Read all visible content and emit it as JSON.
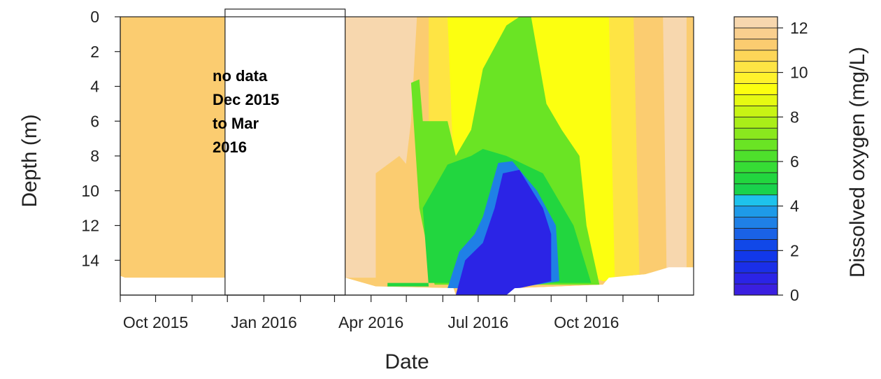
{
  "chart_data": {
    "type": "heatmap",
    "xlabel": "Date",
    "ylabel": "Depth (m)",
    "x_ticks": [
      "Oct 2015",
      "Jan 2016",
      "Apr 2016",
      "Jul 2016",
      "Oct 2016"
    ],
    "x_range": [
      "2015-09-01",
      "2016-12-31"
    ],
    "y_ticks": [
      0,
      2,
      4,
      6,
      8,
      10,
      12,
      14
    ],
    "ylim": [
      16,
      0
    ],
    "y_reversed": true,
    "colorbar": {
      "label": "Dissolved oxygen (mg/L)",
      "ticks": [
        0,
        2,
        4,
        6,
        8,
        10,
        12
      ],
      "range": [
        0,
        12.5
      ],
      "levels": [
        {
          "from": 0.0,
          "to": 0.5,
          "color": "#3a1fe0"
        },
        {
          "from": 0.5,
          "to": 1.0,
          "color": "#2b24e6"
        },
        {
          "from": 1.0,
          "to": 1.5,
          "color": "#1a2fe8"
        },
        {
          "from": 1.5,
          "to": 2.0,
          "color": "#1238ea"
        },
        {
          "from": 2.0,
          "to": 2.5,
          "color": "#1148e8"
        },
        {
          "from": 2.5,
          "to": 3.0,
          "color": "#1a62e6"
        },
        {
          "from": 3.0,
          "to": 3.5,
          "color": "#1f80e6"
        },
        {
          "from": 3.5,
          "to": 4.0,
          "color": "#1e9ae8"
        },
        {
          "from": 4.0,
          "to": 4.5,
          "color": "#1ec2ec"
        },
        {
          "from": 4.5,
          "to": 5.0,
          "color": "#19d24c"
        },
        {
          "from": 5.0,
          "to": 5.5,
          "color": "#22d63f"
        },
        {
          "from": 5.5,
          "to": 6.0,
          "color": "#36dc35"
        },
        {
          "from": 6.0,
          "to": 6.5,
          "color": "#4ee02c"
        },
        {
          "from": 6.5,
          "to": 7.0,
          "color": "#6ae424"
        },
        {
          "from": 7.0,
          "to": 7.5,
          "color": "#8ae81e"
        },
        {
          "from": 7.5,
          "to": 8.0,
          "color": "#aaee18"
        },
        {
          "from": 8.0,
          "to": 8.5,
          "color": "#c8f414"
        },
        {
          "from": 8.5,
          "to": 9.0,
          "color": "#e6fa12"
        },
        {
          "from": 9.0,
          "to": 9.5,
          "color": "#fcff10"
        },
        {
          "from": 9.5,
          "to": 10.0,
          "color": "#fff22c"
        },
        {
          "from": 10.0,
          "to": 10.5,
          "color": "#fee444"
        },
        {
          "from": 10.5,
          "to": 11.0,
          "color": "#fdd658"
        },
        {
          "from": 11.0,
          "to": 11.5,
          "color": "#fbcc70"
        },
        {
          "from": 11.5,
          "to": 12.0,
          "color": "#f9cf8e"
        },
        {
          "from": 12.0,
          "to": 12.5,
          "color": "#f7d7ae"
        }
      ]
    },
    "annotation": [
      "no data",
      "Dec 2015",
      "to Mar",
      "2016"
    ],
    "missing_data_period": [
      "2015-11-29",
      "2016-03-10"
    ],
    "max_depth_profile": [
      {
        "x": "2015-09-01",
        "depth": 14.9
      },
      {
        "x": "2015-09-05",
        "depth": 15.0
      },
      {
        "x": "2015-11-29",
        "depth": 15.0
      },
      {
        "x": "2016-03-10",
        "depth": 15.0
      },
      {
        "x": "2016-04-05",
        "depth": 15.5
      },
      {
        "x": "2016-06-10",
        "depth": 15.6
      },
      {
        "x": "2016-06-12",
        "depth": 16.0
      },
      {
        "x": "2016-07-25",
        "depth": 16.0
      },
      {
        "x": "2016-08-01",
        "depth": 15.6
      },
      {
        "x": "2016-10-15",
        "depth": 15.4
      },
      {
        "x": "2016-10-20",
        "depth": 15.0
      },
      {
        "x": "2016-11-20",
        "depth": 14.8
      },
      {
        "x": "2016-12-10",
        "depth": 14.4
      },
      {
        "x": "2016-12-31",
        "depth": 14.4
      }
    ],
    "contours": [
      {
        "level": 12,
        "color": "#f7d7ae",
        "outline": [
          {
            "x": "2016-03-10",
            "depth": 0
          },
          {
            "x": "2016-05-10",
            "depth": 0
          },
          {
            "x": "2016-05-05",
            "depth": 6
          },
          {
            "x": "2016-04-28",
            "depth": 10
          },
          {
            "x": "2016-04-25",
            "depth": 15.0
          },
          {
            "x": "2016-03-10",
            "depth": 15.0
          }
        ]
      },
      {
        "level": 11,
        "color": "#fbcc70",
        "outline": [
          {
            "x": "2016-04-05",
            "depth": 9
          },
          {
            "x": "2016-04-25",
            "depth": 8
          },
          {
            "x": "2016-05-20",
            "depth": 10
          },
          {
            "x": "2016-05-28",
            "depth": 15.5
          },
          {
            "x": "2016-04-05",
            "depth": 15.5
          }
        ]
      },
      {
        "level": 11,
        "color": "#fbcc70",
        "outline": [
          {
            "x": "2016-05-10",
            "depth": 0
          },
          {
            "x": "2016-05-25",
            "depth": 0
          },
          {
            "x": "2016-05-25",
            "depth": 9
          },
          {
            "x": "2016-05-08",
            "depth": 10
          }
        ]
      },
      {
        "level": 10,
        "color": "#fee444",
        "outline": [
          {
            "x": "2016-05-20",
            "depth": 0
          },
          {
            "x": "2016-06-10",
            "depth": 0
          },
          {
            "x": "2016-06-18",
            "depth": 8
          },
          {
            "x": "2016-06-15",
            "depth": 15.0
          },
          {
            "x": "2016-05-20",
            "depth": 15.0
          }
        ]
      },
      {
        "level": 9,
        "color": "#fcff10",
        "outline": [
          {
            "x": "2016-06-05",
            "depth": 0
          },
          {
            "x": "2016-11-05",
            "depth": 0
          },
          {
            "x": "2016-11-05",
            "depth": 15.0
          },
          {
            "x": "2016-10-15",
            "depth": 15.2
          },
          {
            "x": "2016-06-12",
            "depth": 12
          }
        ]
      },
      {
        "level": 10,
        "color": "#fee444",
        "outline": [
          {
            "x": "2016-10-20",
            "depth": 0
          },
          {
            "x": "2016-12-31",
            "depth": 0
          },
          {
            "x": "2016-12-31",
            "depth": 14.4
          },
          {
            "x": "2016-10-25",
            "depth": 15.0
          }
        ]
      },
      {
        "level": 11,
        "color": "#fbcc70",
        "outline": [
          {
            "x": "2016-11-10",
            "depth": 0
          },
          {
            "x": "2016-12-31",
            "depth": 0
          },
          {
            "x": "2016-12-31",
            "depth": 14.4
          },
          {
            "x": "2016-11-15",
            "depth": 14.8
          }
        ]
      },
      {
        "level": 12,
        "color": "#f7d7ae",
        "outline": [
          {
            "x": "2016-12-05",
            "depth": 0
          },
          {
            "x": "2016-12-25",
            "depth": 0
          },
          {
            "x": "2016-12-25",
            "depth": 14.4
          },
          {
            "x": "2016-12-08",
            "depth": 14.5
          }
        ]
      },
      {
        "level": 7,
        "color": "#6ae424",
        "outline": [
          {
            "x": "2016-05-05",
            "depth": 3.8
          },
          {
            "x": "2016-05-12",
            "depth": 3.6
          },
          {
            "x": "2016-05-15",
            "depth": 6
          },
          {
            "x": "2016-06-05",
            "depth": 6
          },
          {
            "x": "2016-06-12",
            "depth": 8
          },
          {
            "x": "2016-06-25",
            "depth": 6.5
          },
          {
            "x": "2016-07-05",
            "depth": 3
          },
          {
            "x": "2016-07-25",
            "depth": 0.5
          },
          {
            "x": "2016-08-05",
            "depth": 0
          },
          {
            "x": "2016-08-15",
            "depth": 0
          },
          {
            "x": "2016-08-28",
            "depth": 5
          },
          {
            "x": "2016-09-10",
            "depth": 6.5
          },
          {
            "x": "2016-09-25",
            "depth": 8
          },
          {
            "x": "2016-10-01",
            "depth": 12
          },
          {
            "x": "2016-10-12",
            "depth": 15.4
          },
          {
            "x": "2016-05-25",
            "depth": 15.4
          },
          {
            "x": "2016-05-12",
            "depth": 11
          }
        ]
      },
      {
        "level": 5,
        "color": "#22d63f",
        "outline": [
          {
            "x": "2016-05-15",
            "depth": 11
          },
          {
            "x": "2016-06-05",
            "depth": 8.5
          },
          {
            "x": "2016-06-25",
            "depth": 8
          },
          {
            "x": "2016-07-05",
            "depth": 7.6
          },
          {
            "x": "2016-07-25",
            "depth": 8
          },
          {
            "x": "2016-08-25",
            "depth": 9
          },
          {
            "x": "2016-09-20",
            "depth": 12
          },
          {
            "x": "2016-10-05",
            "depth": 15.3
          },
          {
            "x": "2016-04-15",
            "depth": 15.3
          },
          {
            "x": "2016-04-15",
            "depth": 15.5
          },
          {
            "x": "2016-05-20",
            "depth": 15.5
          }
        ]
      },
      {
        "level": 3,
        "color": "#1f80e6",
        "outline": [
          {
            "x": "2016-06-05",
            "depth": 15.6
          },
          {
            "x": "2016-06-15",
            "depth": 13.5
          },
          {
            "x": "2016-06-28",
            "depth": 12.5
          },
          {
            "x": "2016-07-05",
            "depth": 11.5
          },
          {
            "x": "2016-07-18",
            "depth": 8.4
          },
          {
            "x": "2016-07-30",
            "depth": 8.3
          },
          {
            "x": "2016-08-20",
            "depth": 10
          },
          {
            "x": "2016-09-05",
            "depth": 12
          },
          {
            "x": "2016-09-08",
            "depth": 15.2
          },
          {
            "x": "2016-08-01",
            "depth": 15.6
          }
        ]
      },
      {
        "level": 1,
        "color": "#2b24e6",
        "outline": [
          {
            "x": "2016-06-12",
            "depth": 16
          },
          {
            "x": "2016-06-20",
            "depth": 14
          },
          {
            "x": "2016-07-05",
            "depth": 13
          },
          {
            "x": "2016-07-15",
            "depth": 11
          },
          {
            "x": "2016-07-22",
            "depth": 9
          },
          {
            "x": "2016-08-05",
            "depth": 8.8
          },
          {
            "x": "2016-08-25",
            "depth": 11
          },
          {
            "x": "2016-09-01",
            "depth": 12.5
          },
          {
            "x": "2016-09-01",
            "depth": 15.2
          },
          {
            "x": "2016-08-05",
            "depth": 15.6
          },
          {
            "x": "2016-07-25",
            "depth": 16
          }
        ]
      }
    ]
  }
}
